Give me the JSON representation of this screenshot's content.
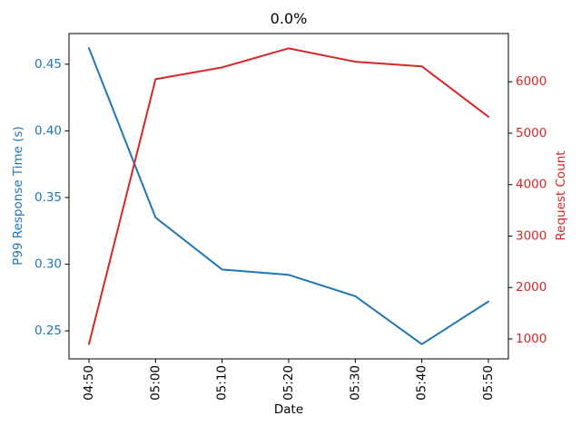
{
  "figure": {
    "background": "#ffffff"
  },
  "chart_data": {
    "type": "line",
    "title": "0.0%",
    "xlabel": "Date",
    "categories": [
      "04:50",
      "05:00",
      "05:10",
      "05:20",
      "05:30",
      "05:40",
      "05:50"
    ],
    "axes": {
      "left": {
        "label": "P99 Response Time (s)",
        "color": "#1f77b4",
        "ticks": [
          0.25,
          0.3,
          0.35,
          0.4,
          0.45
        ],
        "tick_labels": [
          "0.25",
          "0.30",
          "0.35",
          "0.40",
          "0.45"
        ],
        "ylim": [
          0.229,
          0.473
        ]
      },
      "right": {
        "label": "Request Count",
        "color": "#d62728",
        "ticks": [
          1000,
          2000,
          3000,
          4000,
          5000,
          6000
        ],
        "tick_labels": [
          "1000",
          "2000",
          "3000",
          "4000",
          "5000",
          "6000"
        ],
        "ylim": [
          612,
          6938
        ]
      }
    },
    "xlim": [
      -0.3,
      6.3
    ],
    "grid": false,
    "legend": "none",
    "series": [
      {
        "name": "P99 Response Time (s)",
        "yaxis": "left",
        "color": "#1f77b4",
        "values": [
          0.462,
          0.335,
          0.296,
          0.292,
          0.276,
          0.24,
          0.272
        ]
      },
      {
        "name": "Request Count",
        "yaxis": "right",
        "color": "#d62728",
        "values": [
          900,
          6050,
          6280,
          6650,
          6390,
          6300,
          5320
        ]
      }
    ]
  }
}
